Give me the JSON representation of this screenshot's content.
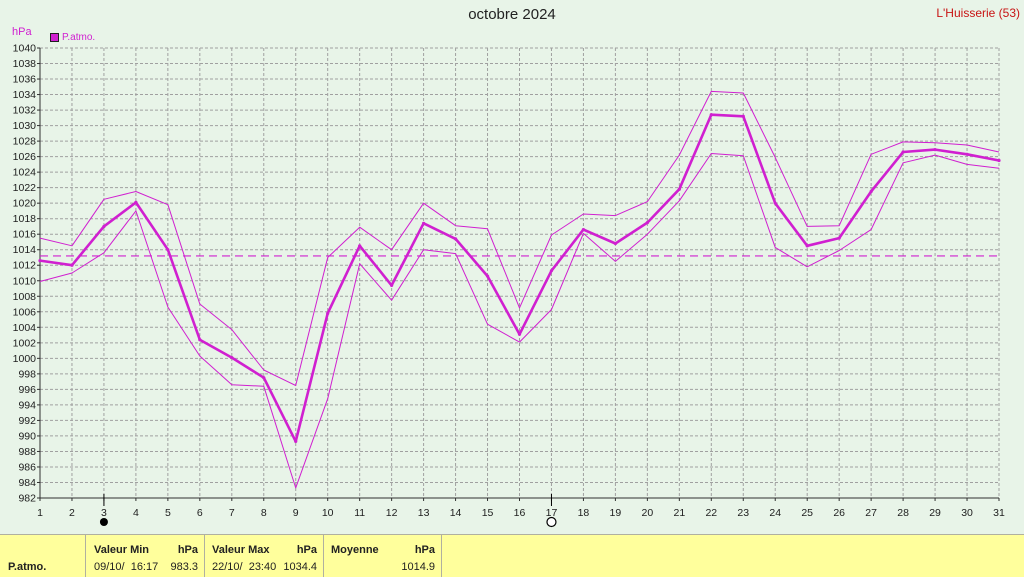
{
  "title": "octobre 2024",
  "station": "L'Huisserie (53)",
  "unit_label": "hPa",
  "legend": {
    "label": "P.atmo.",
    "color": "#d020d0"
  },
  "colors": {
    "series": "#d020d0",
    "grid": "#a0a0a0",
    "background": "#e8f4e8",
    "footer": "#ffff9c",
    "station": "#c81414"
  },
  "markers": {
    "new_moon_day": 3,
    "full_moon_day": 17
  },
  "chart_data": {
    "type": "line",
    "x": [
      1,
      2,
      3,
      4,
      5,
      6,
      7,
      8,
      9,
      10,
      11,
      12,
      13,
      14,
      15,
      16,
      17,
      18,
      19,
      20,
      21,
      22,
      23,
      24,
      25,
      26,
      27,
      28,
      29,
      30,
      31
    ],
    "ylabel": "hPa",
    "ylim": [
      982,
      1040
    ],
    "yticks": [
      982,
      984,
      986,
      988,
      990,
      992,
      994,
      996,
      998,
      1000,
      1002,
      1004,
      1006,
      1008,
      1010,
      1012,
      1014,
      1016,
      1018,
      1020,
      1022,
      1024,
      1026,
      1028,
      1030,
      1032,
      1034,
      1036,
      1038,
      1040
    ],
    "grid": true,
    "average_line": 1013.2,
    "series": [
      {
        "name": "P.atmo.",
        "role": "mean",
        "values": [
          1012.6,
          1012.0,
          1017.0,
          1020.1,
          1014.0,
          1002.4,
          1000.1,
          997.5,
          989.3,
          1005.8,
          1014.5,
          1009.4,
          1017.4,
          1015.4,
          1010.6,
          1003.1,
          1011.3,
          1016.6,
          1014.8,
          1017.5,
          1021.8,
          1031.4,
          1031.2,
          1020.0,
          1014.5,
          1015.5,
          1021.5,
          1026.6,
          1026.9,
          1026.3,
          1025.5
        ]
      },
      {
        "role": "max",
        "values": [
          1015.5,
          1014.5,
          1020.5,
          1021.5,
          1019.8,
          1007.0,
          1003.7,
          998.5,
          996.5,
          1013.0,
          1016.9,
          1014.0,
          1020.0,
          1017.1,
          1016.7,
          1006.5,
          1015.9,
          1018.6,
          1018.4,
          1020.2,
          1026.2,
          1034.4,
          1034.2,
          1025.9,
          1017.0,
          1017.1,
          1026.3,
          1027.9,
          1027.8,
          1027.5,
          1026.6
        ]
      },
      {
        "role": "min",
        "values": [
          1009.9,
          1011.0,
          1013.6,
          1019.0,
          1006.6,
          1000.3,
          996.6,
          996.4,
          983.3,
          994.8,
          1012.2,
          1007.5,
          1014.0,
          1013.5,
          1004.4,
          1002.1,
          1006.3,
          1016.1,
          1012.5,
          1016.0,
          1020.3,
          1026.4,
          1026.1,
          1014.3,
          1011.8,
          1013.9,
          1016.6,
          1025.2,
          1026.2,
          1025.0,
          1024.5
        ]
      }
    ]
  },
  "stats": {
    "row_label": "P.atmo.",
    "min": {
      "header": "Valeur Min",
      "unit": "hPa",
      "date": "09/10/  16:17",
      "value": "983.3"
    },
    "max": {
      "header": "Valeur Max",
      "unit": "hPa",
      "date": "22/10/  23:40",
      "value": "1034.4"
    },
    "avg": {
      "header": "Moyenne",
      "unit": "hPa",
      "value": "1014.9"
    }
  }
}
